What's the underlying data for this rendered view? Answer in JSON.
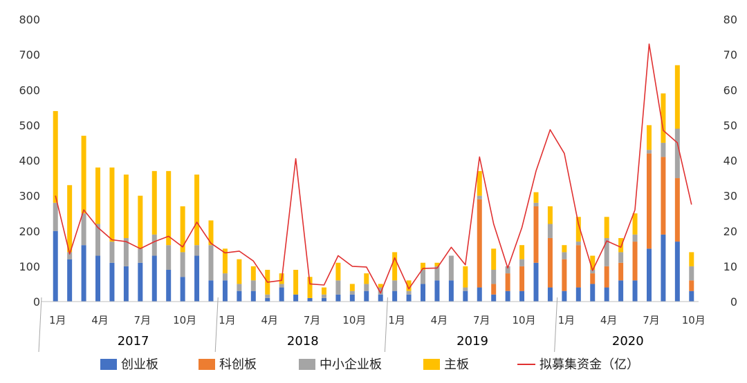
{
  "chart_data": {
    "type": "bar",
    "stacked": true,
    "months": [
      1,
      2,
      3,
      4,
      5,
      6,
      7,
      8,
      9,
      10,
      11,
      12,
      1,
      2,
      3,
      4,
      5,
      6,
      7,
      8,
      9,
      10,
      11,
      12,
      1,
      2,
      3,
      4,
      5,
      6,
      7,
      8,
      9,
      10,
      11,
      12,
      1,
      2,
      3,
      4,
      5,
      6,
      7,
      8,
      9,
      10
    ],
    "x_tick_labels": [
      "1月",
      "4月",
      "7月",
      "10月",
      "1月",
      "4月",
      "7月",
      "10月",
      "1月",
      "4月",
      "7月",
      "10月",
      "1月",
      "4月",
      "7月",
      "10月"
    ],
    "years": [
      "2017",
      "2018",
      "2019",
      "2020"
    ],
    "series": [
      {
        "name": "创业板",
        "color": "#4472C4",
        "axis": "left",
        "values": [
          200,
          120,
          160,
          130,
          110,
          100,
          110,
          130,
          90,
          70,
          130,
          60,
          60,
          30,
          30,
          10,
          40,
          20,
          10,
          10,
          20,
          20,
          30,
          20,
          30,
          20,
          50,
          60,
          60,
          30,
          40,
          20,
          30,
          30,
          110,
          40,
          30,
          40,
          50,
          40,
          60,
          60,
          150,
          190,
          170,
          30
        ]
      },
      {
        "name": "科创板",
        "color": "#ED7D31",
        "axis": "left",
        "values": [
          0,
          0,
          0,
          0,
          0,
          0,
          0,
          0,
          0,
          0,
          0,
          0,
          0,
          0,
          0,
          0,
          0,
          0,
          0,
          0,
          0,
          0,
          0,
          0,
          0,
          0,
          0,
          0,
          0,
          0,
          250,
          30,
          50,
          70,
          160,
          140,
          90,
          120,
          30,
          60,
          50,
          110,
          270,
          220,
          180,
          30
        ]
      },
      {
        "name": "中小企业板",
        "color": "#A5A5A5",
        "axis": "left",
        "values": [
          80,
          20,
          90,
          90,
          60,
          80,
          40,
          60,
          70,
          70,
          30,
          100,
          20,
          20,
          30,
          10,
          10,
          0,
          0,
          10,
          40,
          10,
          20,
          20,
          30,
          10,
          40,
          40,
          70,
          10,
          10,
          40,
          20,
          20,
          10,
          40,
          20,
          10,
          10,
          80,
          30,
          20,
          10,
          40,
          140,
          40
        ]
      },
      {
        "name": "主板",
        "color": "#FFC000",
        "axis": "left",
        "values": [
          260,
          190,
          220,
          160,
          210,
          180,
          150,
          180,
          210,
          130,
          200,
          70,
          70,
          70,
          40,
          70,
          30,
          70,
          60,
          20,
          50,
          20,
          30,
          10,
          80,
          30,
          20,
          10,
          0,
          60,
          70,
          60,
          0,
          40,
          30,
          50,
          20,
          70,
          40,
          60,
          40,
          60,
          70,
          140,
          180,
          40
        ]
      },
      {
        "name": "拟募集资金（亿）",
        "color": "#E03030",
        "axis": "right",
        "type": "line",
        "values": [
          30,
          13.5,
          26,
          21,
          17.5,
          17,
          15,
          17,
          18.5,
          15.5,
          22.5,
          16.5,
          13.8,
          14.3,
          11.5,
          5.5,
          6,
          40.5,
          5,
          4.7,
          13,
          10,
          9.8,
          2.4,
          12.4,
          3.6,
          9.4,
          9.5,
          15.4,
          10.4,
          41,
          22,
          9.5,
          21,
          37,
          48.7,
          42,
          22,
          8.8,
          17.2,
          15.4,
          26,
          73,
          48.5,
          45,
          27.5
        ]
      }
    ],
    "y_left": {
      "min": 0,
      "max": 800,
      "ticks": [
        0,
        100,
        200,
        300,
        400,
        500,
        600,
        700,
        800
      ]
    },
    "y_right": {
      "min": 0,
      "max": 80,
      "ticks": [
        0,
        10,
        20,
        30,
        40,
        50,
        60,
        70,
        80
      ]
    },
    "gridlines": false,
    "legend_position": "bottom"
  }
}
